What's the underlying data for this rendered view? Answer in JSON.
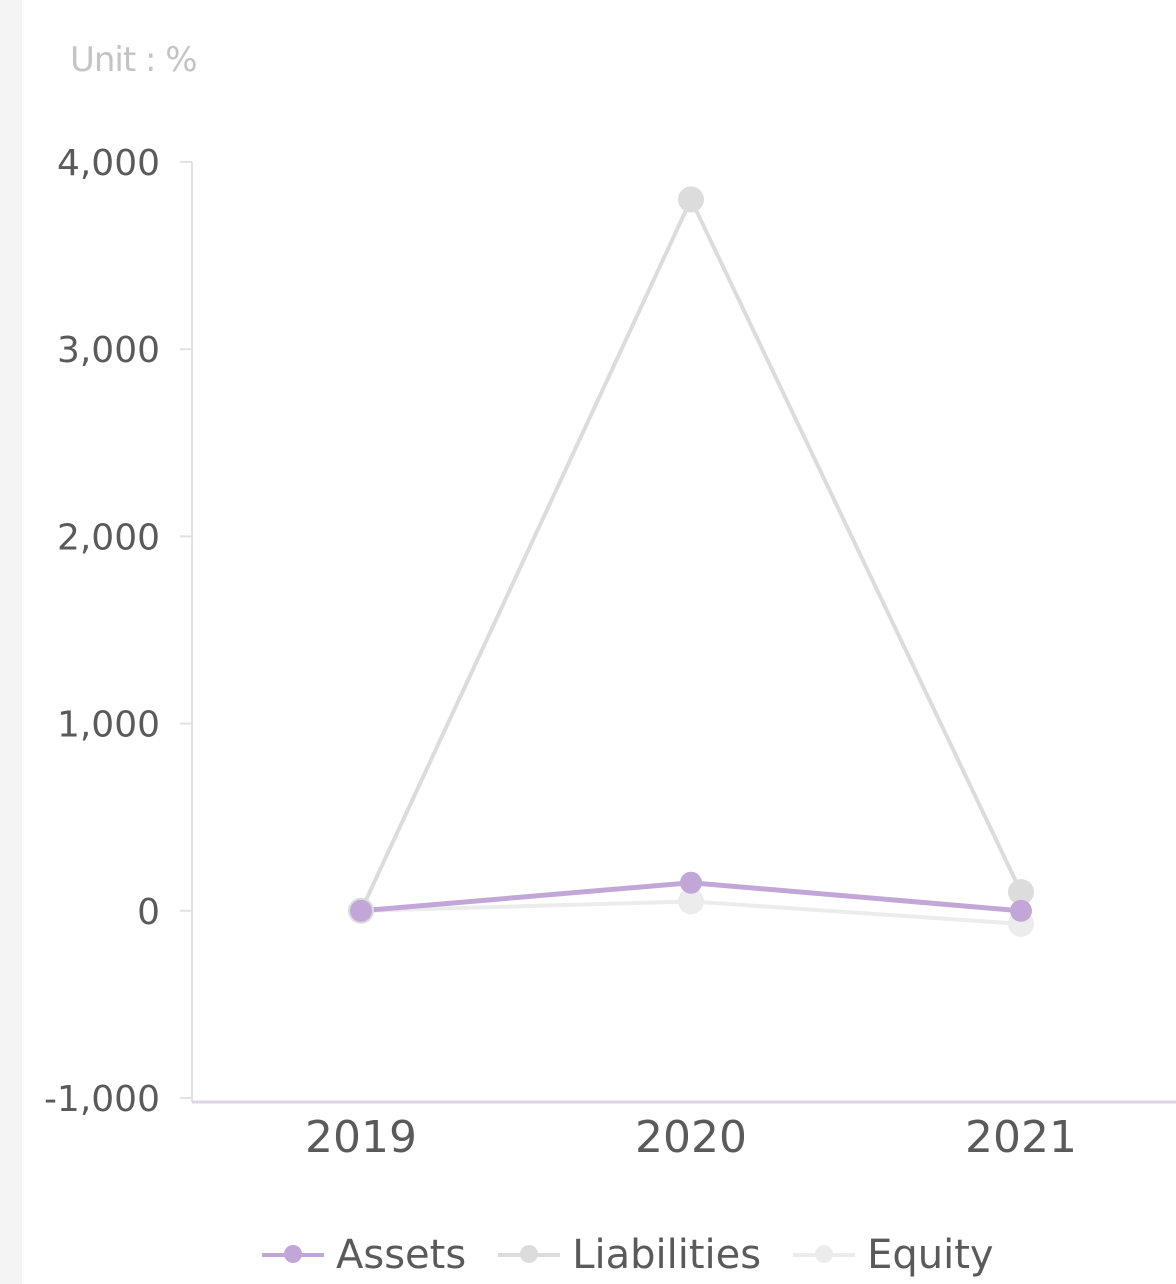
{
  "unit_label": "Unit : %",
  "chart_data": {
    "type": "line",
    "categories": [
      "2019",
      "2020",
      "2021"
    ],
    "series": [
      {
        "name": "Assets",
        "values": [
          0,
          150,
          0
        ],
        "color": "#c3a6d8"
      },
      {
        "name": "Liabilities",
        "values": [
          0,
          3800,
          100
        ],
        "color": "#dcdcdc"
      },
      {
        "name": "Equity",
        "values": [
          0,
          50,
          -70
        ],
        "color": "#ececec"
      }
    ],
    "ylim": [
      -1000,
      4000
    ],
    "yticks": [
      4000,
      3000,
      2000,
      1000,
      0,
      -1000
    ],
    "ytick_labels": [
      "4,000",
      "3,000",
      "2,000",
      "1,000",
      "0",
      "-1,000"
    ],
    "grid": false,
    "legend_position": "bottom"
  }
}
